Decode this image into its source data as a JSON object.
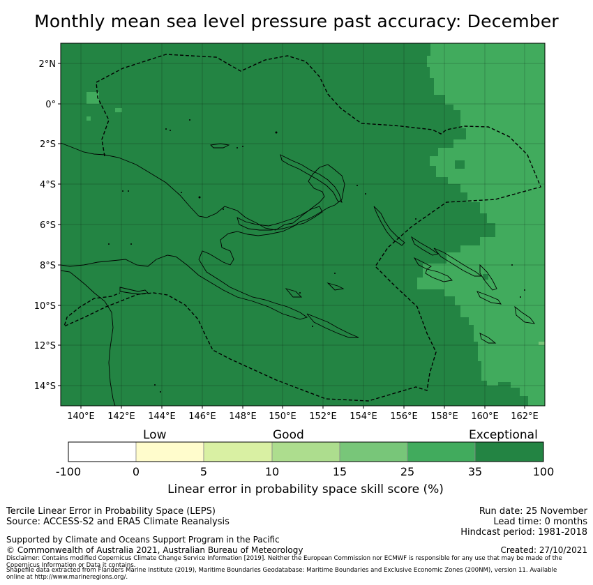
{
  "title": "Monthly mean sea level pressure past accuracy: December",
  "map": {
    "lon_range": [
      139,
      163
    ],
    "lat_range": [
      -15,
      3
    ],
    "lon_ticks": [
      "140°E",
      "142°E",
      "144°E",
      "146°E",
      "148°E",
      "150°E",
      "152°E",
      "154°E",
      "156°E",
      "158°E",
      "160°E",
      "162°E"
    ],
    "lat_ticks": [
      "2°N",
      "0°",
      "2°S",
      "4°S",
      "6°S",
      "8°S",
      "10°S",
      "12°S",
      "14°S"
    ],
    "base_category": "Exceptional",
    "boundaries": "EEZ 200NM"
  },
  "colorbar": {
    "category_labels": [
      "Low",
      "Good",
      "Exceptional"
    ],
    "ticks": [
      "-100",
      "0",
      "5",
      "10",
      "15",
      "25",
      "35",
      "100"
    ],
    "colors": [
      "#ffffff",
      "#fffccc",
      "#d9f0a3",
      "#addd8e",
      "#78c679",
      "#41ab5d",
      "#238443"
    ],
    "title": "Linear error in probability space skill score (%)"
  },
  "footer": {
    "method": "Tercile Linear Error in Probability Space (LEPS)",
    "source": "Source: ACCESS-S2 and ERA5 Climate Reanalysis",
    "support": "Supported by Climate and Oceans Support Program in the Pacific",
    "copyright": "© Commonwealth of Australia 2021, Australian Bureau of Meteorology",
    "disclaimer": "Disclaimer: Contains modified Copernicus Climate Change Service Information [2019]. Neither the European Commission nor ECMWF is responsible for any use that may be made of the Copernicus Information or Data it contains.",
    "shapefile": "Shapefile data extracted from Flanders Marine Institute (2019), Maritime Boundaries Geodatabase: Maritime Boundaries and Exclusive Economic Zones (200NM), version 11. Available online at http://www.marineregions.org/.",
    "run_date": "Run date: 25 November",
    "lead_time": "Lead time: 0 months",
    "hindcast": "Hindcast period: 1981-2018",
    "created": "Created: 27/10/2021"
  }
}
